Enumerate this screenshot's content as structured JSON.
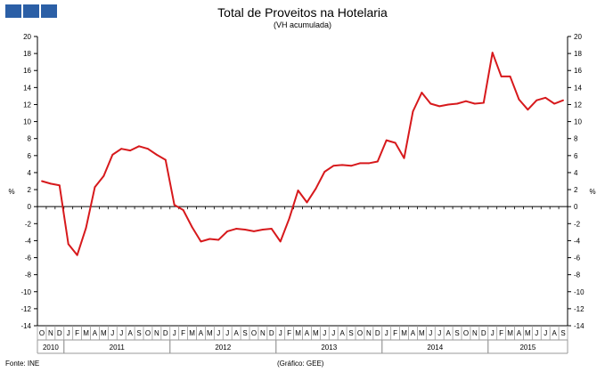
{
  "header": {
    "title": "Total de Proveitos na Hotelaria",
    "subtitle": "(VH acumulada)"
  },
  "footer": {
    "source": "Fonte: INE",
    "credit": "(Gráfico: GEE)"
  },
  "colors": {
    "line": "#d7191c",
    "logo": "#2b5fa6",
    "zero_line": "#000000",
    "axis_box": "#9a9a9a"
  },
  "chart_data": {
    "type": "line",
    "title": "Total de Proveitos na Hotelaria",
    "subtitle": "(VH acumulada)",
    "ylabel": "%",
    "ylim": [
      -14,
      20
    ],
    "y_ticks": [
      -14,
      -12,
      -10,
      -8,
      -6,
      -4,
      -2,
      0,
      2,
      4,
      6,
      8,
      10,
      12,
      14,
      16,
      18,
      20
    ],
    "grid": false,
    "legend": "none",
    "months": [
      "O",
      "N",
      "D",
      "J",
      "F",
      "M",
      "A",
      "M",
      "J",
      "J",
      "A",
      "S",
      "O",
      "N",
      "D",
      "J",
      "F",
      "M",
      "A",
      "M",
      "J",
      "J",
      "A",
      "S",
      "O",
      "N",
      "D",
      "J",
      "F",
      "M",
      "A",
      "M",
      "J",
      "J",
      "A",
      "S",
      "O",
      "N",
      "D",
      "J",
      "F",
      "M",
      "A",
      "M",
      "J",
      "J",
      "A",
      "S",
      "O",
      "N",
      "D",
      "J",
      "F",
      "M",
      "A",
      "M",
      "J",
      "J",
      "A",
      "S"
    ],
    "years": [
      {
        "label": "2010",
        "start": 0,
        "count": 3
      },
      {
        "label": "2011",
        "start": 3,
        "count": 12
      },
      {
        "label": "2012",
        "start": 15,
        "count": 12
      },
      {
        "label": "2013",
        "start": 27,
        "count": 12
      },
      {
        "label": "2014",
        "start": 39,
        "count": 12
      },
      {
        "label": "2015",
        "start": 51,
        "count": 9
      }
    ],
    "series": [
      {
        "values": [
          3.0,
          2.7,
          2.5,
          -4.4,
          -5.7,
          -2.5,
          2.3,
          3.6,
          6.1,
          6.8,
          6.6,
          7.1,
          6.8,
          6.1,
          5.5,
          0.2,
          -0.4,
          -2.4,
          -4.1,
          -3.8,
          -3.9,
          -2.9,
          -2.6,
          -2.7,
          -2.9,
          -2.7,
          -2.6,
          -4.1,
          -1.4,
          1.9,
          0.5,
          2.1,
          4.1,
          4.8,
          4.9,
          4.8,
          5.1,
          5.1,
          5.3,
          7.8,
          7.5,
          5.7,
          11.2,
          13.4,
          12.1,
          11.8,
          12.0,
          12.1,
          12.4,
          12.1,
          12.2,
          18.1,
          15.3,
          15.3,
          12.6,
          11.4,
          12.5,
          12.8,
          12.1,
          12.5
        ]
      }
    ]
  }
}
